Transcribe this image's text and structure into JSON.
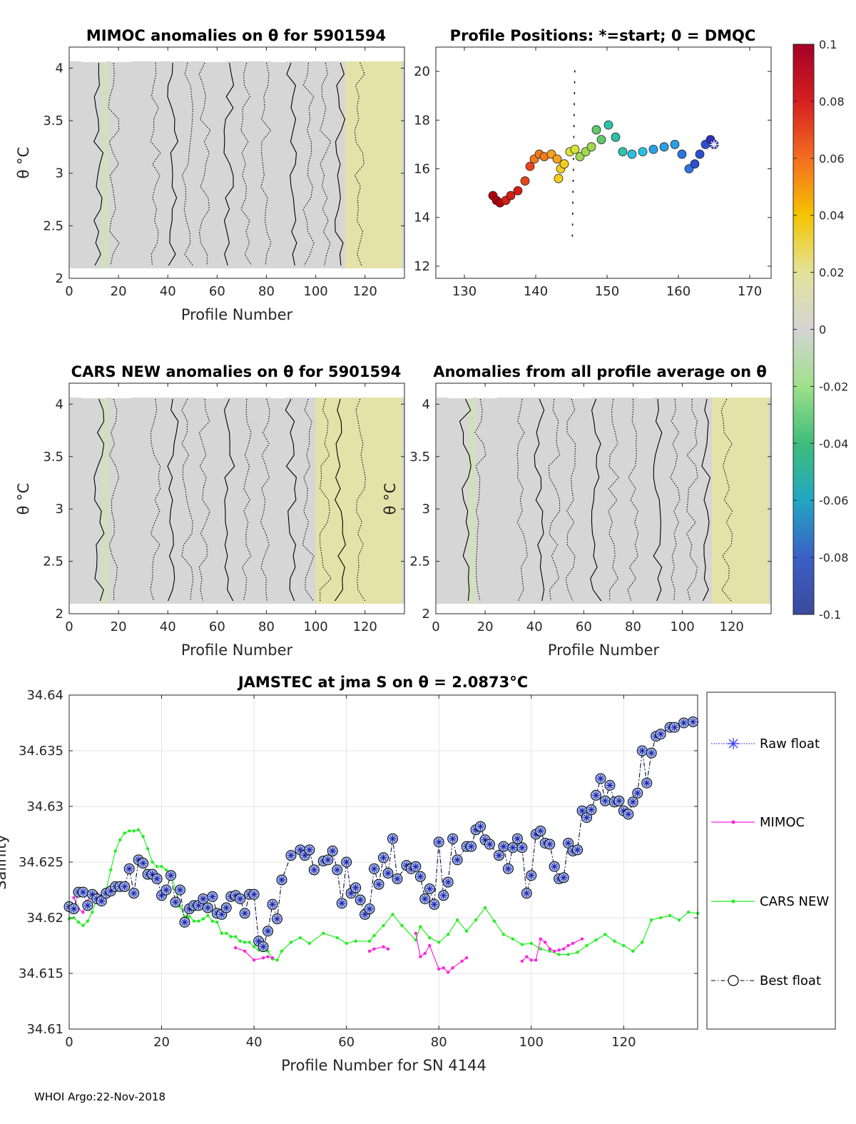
{
  "footer": "WHOI Argo:22-Nov-2018",
  "colors": {
    "anomaly_gray": "#d6d6d6",
    "anomaly_yellow": "#e6e3a3",
    "raw": "#3a3aff",
    "mimoc": "#ff22dd",
    "cars": "#22ee22",
    "best": "#000000"
  },
  "colorbar": {
    "ticks": [
      "0.1",
      "0.08",
      "0.06",
      "0.04",
      "0.02",
      "0",
      "-0.02",
      "-0.04",
      "-0.06",
      "-0.08",
      "-0.1"
    ],
    "stops": [
      "#a50026",
      "#d42020",
      "#f46d21",
      "#f5c400",
      "#e3e39a",
      "#d4d4d4",
      "#9fe08a",
      "#3ebd7a",
      "#22a6c3",
      "#3c5fc6",
      "#3a4a9c"
    ]
  },
  "chart_data": [
    {
      "id": "mimoc",
      "type": "heatmap",
      "title": "MIMOC anomalies on θ  for 5901594",
      "xlabel": "Profile Number",
      "ylabel": "θ °C",
      "xlim": [
        0,
        136
      ],
      "ylim": [
        2,
        4.2
      ],
      "xticks": [
        "0",
        "20",
        "40",
        "60",
        "80",
        "100",
        "120"
      ],
      "yticks": [
        "2",
        "2.5",
        "3",
        "3.5",
        "4"
      ],
      "warm_band_profiles": [
        112,
        135
      ]
    },
    {
      "id": "positions",
      "type": "scatter",
      "title": "Profile Positions: *=start; 0 = DMQC",
      "xlim": [
        126,
        173
      ],
      "ylim": [
        11.5,
        21
      ],
      "xticks": [
        "130",
        "140",
        "150",
        "160",
        "170"
      ],
      "yticks": [
        "12",
        "14",
        "16",
        "18",
        "20"
      ],
      "track_lon": [
        134,
        134.5,
        135,
        135.8,
        136.5,
        137.5,
        138.5,
        139.2,
        139.8,
        140.5,
        141.2,
        142.2,
        143,
        143.5,
        143.2,
        144,
        144.8,
        145.5,
        146.2,
        147,
        147.8,
        148.5,
        149.2,
        150.2,
        151.2,
        152.2,
        153.5,
        155,
        156.5,
        158,
        159.5,
        160.5,
        161.5,
        162.3,
        163,
        163.8,
        164.5,
        165
      ],
      "track_lat": [
        14.9,
        14.7,
        14.6,
        14.7,
        14.9,
        15.1,
        15.5,
        16.1,
        16.4,
        16.6,
        16.5,
        16.6,
        16.4,
        16.0,
        15.6,
        16.2,
        16.7,
        16.8,
        16.5,
        16.7,
        16.9,
        17.6,
        17.2,
        17.8,
        17.3,
        16.7,
        16.6,
        16.7,
        16.8,
        16.9,
        17.0,
        16.6,
        16.0,
        16.2,
        16.6,
        17.0,
        17.2,
        17.0
      ],
      "start": [
        165,
        17.0
      ]
    },
    {
      "id": "cars",
      "type": "heatmap",
      "title": "CARS NEW anomalies on θ for 5901594",
      "xlabel": "Profile Number",
      "ylabel": "θ °C",
      "xlim": [
        0,
        136
      ],
      "ylim": [
        2,
        4.2
      ],
      "xticks": [
        "0",
        "20",
        "40",
        "60",
        "80",
        "100",
        "120"
      ],
      "yticks": [
        "2",
        "2.5",
        "3",
        "3.5",
        "4"
      ],
      "warm_band_profiles": [
        100,
        135
      ]
    },
    {
      "id": "allavg",
      "type": "heatmap",
      "title": "Anomalies from all profile average on θ",
      "xlabel": "Profile Number",
      "ylabel": "θ °C",
      "xlim": [
        0,
        136
      ],
      "ylim": [
        2,
        4.2
      ],
      "xticks": [
        "0",
        "20",
        "40",
        "60",
        "80",
        "100",
        "120"
      ],
      "yticks": [
        "2",
        "2.5",
        "3",
        "3.5",
        "4"
      ],
      "warm_band_profiles": [
        112,
        135
      ]
    },
    {
      "id": "salinity",
      "type": "line",
      "title": "JAMSTEC at jma S on θ = 2.0873°C",
      "xlabel": "Profile Number for SN 4144",
      "ylabel": "Salinity",
      "xlim": [
        0,
        136
      ],
      "ylim": [
        34.61,
        34.64
      ],
      "xticks": [
        "0",
        "20",
        "40",
        "60",
        "80",
        "100",
        "120"
      ],
      "yticks": [
        "34.61",
        "34.615",
        "34.62",
        "34.625",
        "34.63",
        "34.635",
        "34.64"
      ],
      "legend": [
        "Raw float",
        "MIMOC",
        "CARS NEW",
        "Best float"
      ],
      "legend_position": "outside-right",
      "series": [
        {
          "name": "Raw float / Best float",
          "x": [
            0,
            1,
            2,
            3,
            4,
            5,
            6,
            7,
            8,
            9,
            10,
            11,
            12,
            13,
            14,
            15,
            16,
            17,
            18,
            19,
            20,
            21,
            22,
            23,
            24,
            25,
            26,
            27,
            28,
            29,
            30,
            31,
            32,
            33,
            34,
            35,
            36,
            37,
            38,
            39,
            40,
            41,
            42,
            43,
            44,
            45,
            46,
            48,
            50,
            51,
            52,
            53,
            55,
            56,
            57,
            58,
            59,
            60,
            61,
            62,
            63,
            64,
            65,
            66,
            67,
            68,
            69,
            70,
            71,
            73,
            74,
            75,
            76,
            77,
            78,
            79,
            80,
            81,
            82,
            83,
            84,
            86,
            87,
            88,
            89,
            90,
            91,
            93,
            94,
            95,
            96,
            97,
            98,
            99,
            100,
            101,
            102,
            103,
            104,
            105,
            106,
            107,
            108,
            109,
            110,
            111,
            112,
            113,
            114,
            115,
            116,
            117,
            118,
            119,
            120,
            121,
            122,
            123,
            124,
            125,
            126,
            127,
            128,
            130,
            131,
            133,
            135
          ],
          "y": [
            34.621,
            34.6208,
            34.6223,
            34.6223,
            34.6211,
            34.6221,
            34.6217,
            34.6215,
            34.6222,
            34.6224,
            34.6228,
            34.6228,
            34.6228,
            34.6244,
            34.6222,
            34.6252,
            34.6249,
            34.6239,
            34.6239,
            34.6235,
            34.622,
            34.6225,
            34.6238,
            34.6214,
            34.6225,
            34.6196,
            34.6208,
            34.6211,
            34.6211,
            34.6217,
            34.6209,
            34.6219,
            34.6204,
            34.6203,
            34.6209,
            34.6219,
            34.622,
            34.6217,
            34.6204,
            34.6221,
            34.6221,
            34.6179,
            34.6174,
            34.6188,
            34.6212,
            34.6199,
            34.6234,
            34.6256,
            34.6261,
            34.6256,
            34.6261,
            34.6243,
            34.6251,
            34.6252,
            34.626,
            34.6243,
            34.6213,
            34.625,
            34.6222,
            34.6227,
            34.6216,
            34.6203,
            34.6208,
            34.6244,
            34.623,
            34.6254,
            34.624,
            34.6271,
            34.6235,
            34.6247,
            34.6244,
            34.6246,
            34.6237,
            34.6217,
            34.6226,
            34.6212,
            34.6268,
            34.622,
            34.6232,
            34.6271,
            34.6252,
            34.6264,
            34.6264,
            34.6279,
            34.6282,
            34.627,
            34.6266,
            34.6256,
            34.6264,
            34.6244,
            34.6263,
            34.6271,
            34.6263,
            34.6222,
            34.6238,
            34.6275,
            34.6278,
            34.6267,
            34.6266,
            34.6246,
            34.6235,
            34.6236,
            34.6267,
            34.626,
            34.6261,
            34.6296,
            34.629,
            34.6297,
            34.631,
            34.6325,
            34.6305,
            34.6319,
            34.6304,
            34.6305,
            34.6296,
            34.6293,
            34.6304,
            34.6312,
            34.635,
            34.6321,
            34.6348,
            34.6363,
            34.6365,
            34.6371,
            34.6371,
            34.6375,
            34.6376
          ]
        },
        {
          "name": "MIMOC",
          "x": [
            1,
            2,
            3,
            4,
            5,
            6,
            36,
            38,
            40,
            42,
            43,
            44,
            65,
            66,
            68,
            69,
            75,
            76,
            77,
            78,
            80,
            81,
            82,
            83,
            85,
            86,
            98,
            99,
            100,
            101,
            102,
            103,
            104,
            105,
            106,
            107,
            108,
            109,
            111
          ],
          "y": [
            34.6218,
            34.6208,
            34.6205,
            34.6215,
            34.6222,
            34.6222,
            34.6173,
            34.617,
            34.6162,
            34.6164,
            34.6165,
            34.6164,
            34.617,
            34.6172,
            34.6174,
            34.6172,
            34.6186,
            34.6165,
            34.6168,
            34.6175,
            34.6154,
            34.6155,
            34.6151,
            34.6155,
            34.6161,
            34.6164,
            34.6161,
            34.6165,
            34.6162,
            34.6162,
            34.6181,
            34.6178,
            34.6172,
            34.617,
            34.6171,
            34.6172,
            34.6175,
            34.6177,
            34.6181
          ]
        },
        {
          "name": "CARS NEW",
          "x": [
            0,
            1,
            2,
            3,
            4,
            5,
            6,
            7,
            8,
            9,
            10,
            11,
            12,
            13,
            14,
            15,
            16,
            17,
            18,
            19,
            20,
            21,
            22,
            23,
            24,
            25,
            26,
            27,
            28,
            29,
            30,
            31,
            32,
            33,
            34,
            35,
            36,
            37,
            38,
            39,
            40,
            41,
            42,
            43,
            44,
            45,
            46,
            48,
            50,
            52,
            55,
            58,
            60,
            62,
            65,
            66,
            68,
            70,
            72,
            75,
            76,
            78,
            80,
            82,
            84,
            86,
            88,
            90,
            92,
            94,
            96,
            98,
            100,
            102,
            104,
            106,
            108,
            110,
            112,
            114,
            116,
            118,
            120,
            122,
            124,
            126,
            128,
            130,
            132,
            134,
            136
          ],
          "y": [
            34.6199,
            34.62,
            34.6196,
            34.6193,
            34.6197,
            34.6205,
            34.6218,
            34.622,
            34.6225,
            34.6243,
            34.626,
            34.627,
            34.6276,
            34.6278,
            34.6278,
            34.6279,
            34.6273,
            34.6262,
            34.625,
            34.6246,
            34.6246,
            34.6243,
            34.624,
            34.6225,
            34.621,
            34.6201,
            34.6201,
            34.6197,
            34.6197,
            34.6199,
            34.6202,
            34.6197,
            34.6196,
            34.6186,
            34.6186,
            34.6183,
            34.6183,
            34.6179,
            34.6178,
            34.6178,
            34.6174,
            34.6171,
            34.6171,
            34.617,
            34.6163,
            34.6162,
            34.617,
            34.6178,
            34.6182,
            34.6177,
            34.6186,
            34.6182,
            34.6177,
            34.6179,
            34.6179,
            34.6184,
            34.6193,
            34.6203,
            34.6193,
            34.618,
            34.6192,
            34.6182,
            34.6178,
            34.6185,
            34.6198,
            34.6188,
            34.6198,
            34.6209,
            34.6197,
            34.6185,
            34.6181,
            34.6176,
            34.6177,
            34.6172,
            34.617,
            34.6167,
            34.6167,
            34.6169,
            34.6175,
            34.618,
            34.6185,
            34.6179,
            34.6175,
            34.617,
            34.6178,
            34.6198,
            34.62,
            34.6202,
            34.6198,
            34.6205,
            34.6204
          ]
        }
      ]
    }
  ]
}
